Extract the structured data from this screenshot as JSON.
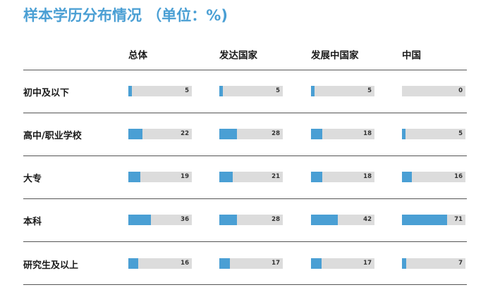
{
  "title": "样本学历分布情况 （单位：%)",
  "chart_data": {
    "type": "bar",
    "title": "样本学历分布情况 （单位：%)",
    "categories": [
      "初中及以下",
      "高中/职业学校",
      "大专",
      "本科",
      "研究生及以上"
    ],
    "series": [
      {
        "name": "总体",
        "values": [
          5,
          22,
          19,
          36,
          16
        ]
      },
      {
        "name": "发达国家",
        "values": [
          5,
          28,
          21,
          28,
          17
        ]
      },
      {
        "name": "发展中国家",
        "values": [
          5,
          18,
          18,
          42,
          17
        ]
      },
      {
        "name": "中国",
        "values": [
          0,
          5,
          16,
          71,
          7
        ]
      }
    ],
    "ylim": [
      0,
      100
    ],
    "grid": false,
    "bar_color": "#4a9fd4",
    "track_color": "#dcdcdc"
  }
}
